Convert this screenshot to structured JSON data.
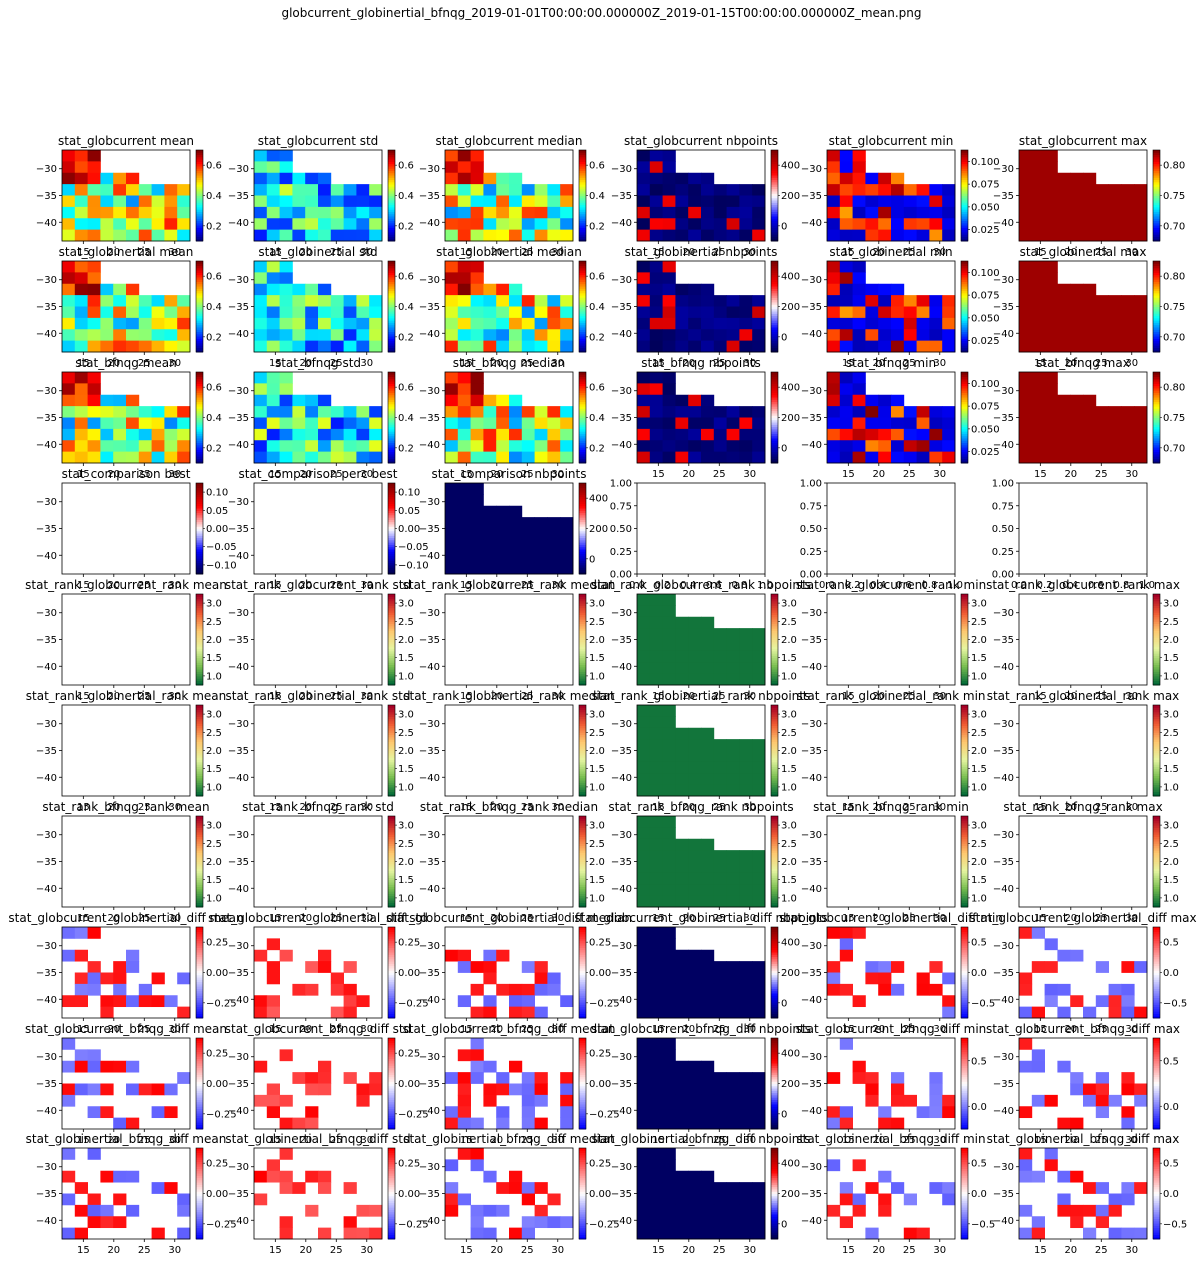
{
  "figure": {
    "title": "globcurrent_globinertial_bfnqg_2019-01-01T00:00:00.000000Z_2019-01-15T00:00:00.000000Z_mean.png"
  },
  "grid": {
    "rows": 10,
    "cols": 6
  },
  "axes": {
    "xticks": [
      15,
      20,
      25,
      30
    ],
    "yticks": [
      -30,
      -35,
      -40
    ],
    "xlim": [
      11.5,
      32.5
    ],
    "ylim": [
      -43.5,
      -26.5
    ],
    "empty_xticks": [
      "0.0",
      "0.2",
      "0.4",
      "0.6",
      "0.8",
      "1.0"
    ],
    "empty_yticks": [
      "0.00",
      "0.25",
      "0.50",
      "0.75",
      "1.00"
    ]
  },
  "colorbar_ticks": {
    "A": [
      "0.2",
      "0.4",
      "0.6"
    ],
    "B": [
      "0",
      "200",
      "400"
    ],
    "C": [
      "0.025",
      "0.050",
      "0.075",
      "0.100"
    ],
    "D": [
      "0.70",
      "0.75",
      "0.80"
    ],
    "E": [
      "−0.10",
      "−0.05",
      "0.00",
      "0.05",
      "0.10"
    ],
    "F": [
      "1.0",
      "1.5",
      "2.0",
      "2.5",
      "3.0"
    ],
    "G": [
      "−0.25",
      "0.00",
      "0.25"
    ],
    "H": [
      "−0.5",
      "0.0",
      "0.5"
    ],
    "I": [
      "0.0",
      "0.5"
    ],
    "J": [
      "−0.5",
      "0.0",
      "0.5"
    ]
  },
  "chart_data": [
    {
      "type": "heatmap",
      "title": "stat_globcurrent mean",
      "cmap": "jet",
      "cbar": "A",
      "pattern": "value",
      "seed": 1
    },
    {
      "type": "heatmap",
      "title": "stat_globcurrent std",
      "cmap": "jet",
      "cbar": "A",
      "pattern": "low",
      "seed": 2
    },
    {
      "type": "heatmap",
      "title": "stat_globcurrent median",
      "cmap": "jet",
      "cbar": "A",
      "pattern": "value",
      "seed": 3
    },
    {
      "type": "heatmap",
      "title": "stat_globcurrent nbpoints",
      "cmap": "seismic",
      "cbar": "B",
      "pattern": "count",
      "seed": 4
    },
    {
      "type": "heatmap",
      "title": "stat_globcurrent min",
      "cmap": "jet",
      "cbar": "C",
      "pattern": "min",
      "seed": 5
    },
    {
      "type": "heatmap",
      "title": "stat_globcurrent max",
      "cmap": "jet",
      "cbar": "D",
      "pattern": "max",
      "seed": 6
    },
    {
      "type": "heatmap",
      "title": "stat_globinertial mean",
      "cmap": "jet",
      "cbar": "A",
      "pattern": "value",
      "seed": 7
    },
    {
      "type": "heatmap",
      "title": "stat_globinertial std",
      "cmap": "jet",
      "cbar": "A",
      "pattern": "low",
      "seed": 8
    },
    {
      "type": "heatmap",
      "title": "stat_globinertial median",
      "cmap": "jet",
      "cbar": "A",
      "pattern": "value",
      "seed": 9
    },
    {
      "type": "heatmap",
      "title": "stat_globinertial nbpoints",
      "cmap": "seismic",
      "cbar": "B",
      "pattern": "count",
      "seed": 10
    },
    {
      "type": "heatmap",
      "title": "stat_globinertial min",
      "cmap": "jet",
      "cbar": "C",
      "pattern": "min",
      "seed": 11
    },
    {
      "type": "heatmap",
      "title": "stat_globinertial max",
      "cmap": "jet",
      "cbar": "D",
      "pattern": "max",
      "seed": 12
    },
    {
      "type": "heatmap",
      "title": "stat_bfnqg mean",
      "cmap": "jet",
      "cbar": "A",
      "pattern": "value",
      "seed": 13
    },
    {
      "type": "heatmap",
      "title": "stat_bfnqg std",
      "cmap": "jet",
      "cbar": "A",
      "pattern": "low",
      "seed": 14
    },
    {
      "type": "heatmap",
      "title": "stat_bfnqg median",
      "cmap": "jet",
      "cbar": "A",
      "pattern": "value",
      "seed": 15
    },
    {
      "type": "heatmap",
      "title": "stat_bfnqg nbpoints",
      "cmap": "seismic",
      "cbar": "B",
      "pattern": "count",
      "seed": 16
    },
    {
      "type": "heatmap",
      "title": "stat_bfnqg min",
      "cmap": "jet",
      "cbar": "C",
      "pattern": "min",
      "seed": 17
    },
    {
      "type": "heatmap",
      "title": "stat_bfnqg max",
      "cmap": "jet",
      "cbar": "D",
      "pattern": "max",
      "seed": 18
    },
    {
      "type": "heatmap",
      "title": "stat_comparison best",
      "cmap": "seismic",
      "cbar": "E",
      "pattern": "blank",
      "seed": 19
    },
    {
      "type": "heatmap",
      "title": "stat_comparison perc best",
      "cmap": "seismic",
      "cbar": "E",
      "pattern": "blank",
      "seed": 20
    },
    {
      "type": "heatmap",
      "title": "stat_comparison nbpoints",
      "cmap": "seismic",
      "cbar": "B",
      "pattern": "solid",
      "seed": 21
    },
    {
      "type": "empty",
      "title": ""
    },
    {
      "type": "empty",
      "title": ""
    },
    {
      "type": "empty",
      "title": ""
    },
    {
      "type": "heatmap",
      "title": "stat_rank_globcurrent_rank mean",
      "cmap": "rank",
      "cbar": "F",
      "pattern": "blank",
      "seed": 25
    },
    {
      "type": "heatmap",
      "title": "stat_rank_globcurrent_rank std",
      "cmap": "rank",
      "cbar": "F",
      "pattern": "blank",
      "seed": 26
    },
    {
      "type": "heatmap",
      "title": "stat_rank_globcurrent_rank median",
      "cmap": "rank",
      "cbar": "F",
      "pattern": "blank",
      "seed": 27
    },
    {
      "type": "heatmap",
      "title": "stat_rank_globcurrent_rank nbpoints",
      "cmap": "rank",
      "cbar": "F",
      "pattern": "solid",
      "seed": 28
    },
    {
      "type": "heatmap",
      "title": "stat_rank_globcurrent_rank min",
      "cmap": "rank",
      "cbar": "F",
      "pattern": "blank",
      "seed": 29
    },
    {
      "type": "heatmap",
      "title": "stat_rank_globcurrent_rank max",
      "cmap": "rank",
      "cbar": "F",
      "pattern": "blank",
      "seed": 30
    },
    {
      "type": "heatmap",
      "title": "stat_rank_globinertial_rank mean",
      "cmap": "rank",
      "cbar": "F",
      "pattern": "blank",
      "seed": 31
    },
    {
      "type": "heatmap",
      "title": "stat_rank_globinertial_rank std",
      "cmap": "rank",
      "cbar": "F",
      "pattern": "blank",
      "seed": 32
    },
    {
      "type": "heatmap",
      "title": "stat_rank_globinertial_rank median",
      "cmap": "rank",
      "cbar": "F",
      "pattern": "blank",
      "seed": 33
    },
    {
      "type": "heatmap",
      "title": "stat_rank_globinertial_rank nbpoints",
      "cmap": "rank",
      "cbar": "F",
      "pattern": "solid",
      "seed": 34
    },
    {
      "type": "heatmap",
      "title": "stat_rank_globinertial_rank min",
      "cmap": "rank",
      "cbar": "F",
      "pattern": "blank",
      "seed": 35
    },
    {
      "type": "heatmap",
      "title": "stat_rank_globinertial_rank max",
      "cmap": "rank",
      "cbar": "F",
      "pattern": "blank",
      "seed": 36
    },
    {
      "type": "heatmap",
      "title": "stat_rank_bfnqg_rank mean",
      "cmap": "rank",
      "cbar": "F",
      "pattern": "blank",
      "seed": 37
    },
    {
      "type": "heatmap",
      "title": "stat_rank_bfnqg_rank std",
      "cmap": "rank",
      "cbar": "F",
      "pattern": "blank",
      "seed": 38
    },
    {
      "type": "heatmap",
      "title": "stat_rank_bfnqg_rank median",
      "cmap": "rank",
      "cbar": "F",
      "pattern": "blank",
      "seed": 39
    },
    {
      "type": "heatmap",
      "title": "stat_rank_bfnqg_rank nbpoints",
      "cmap": "rank",
      "cbar": "F",
      "pattern": "solid",
      "seed": 40
    },
    {
      "type": "heatmap",
      "title": "stat_rank_bfnqg_rank min",
      "cmap": "rank",
      "cbar": "F",
      "pattern": "blank",
      "seed": 41
    },
    {
      "type": "heatmap",
      "title": "stat_rank_bfnqg_rank max",
      "cmap": "rank",
      "cbar": "F",
      "pattern": "blank",
      "seed": 42
    },
    {
      "type": "heatmap",
      "title": "stat_globcurrent_globinertial_diff mean",
      "cmap": "bwr",
      "cbar": "G",
      "pattern": "diff",
      "seed": 43
    },
    {
      "type": "heatmap",
      "title": "stat_globcurrent_globinertial_diff std",
      "cmap": "bwr",
      "cbar": "G",
      "pattern": "diffpos",
      "seed": 44
    },
    {
      "type": "heatmap",
      "title": "stat_globcurrent_globinertial_diff median",
      "cmap": "bwr",
      "cbar": "G",
      "pattern": "diff",
      "seed": 45
    },
    {
      "type": "heatmap",
      "title": "stat_globcurrent_globinertial_diff nbpoints",
      "cmap": "seismic",
      "cbar": "B",
      "pattern": "solid",
      "seed": 46
    },
    {
      "type": "heatmap",
      "title": "stat_globcurrent_globinertial_diff min",
      "cmap": "bwr",
      "cbar": "H",
      "pattern": "diff",
      "seed": 47
    },
    {
      "type": "heatmap",
      "title": "stat_globcurrent_globinertial_diff max",
      "cmap": "bwr",
      "cbar": "H",
      "pattern": "diff",
      "seed": 48
    },
    {
      "type": "heatmap",
      "title": "stat_globcurrent_bfnqg_diff mean",
      "cmap": "bwr",
      "cbar": "G",
      "pattern": "diff",
      "seed": 49
    },
    {
      "type": "heatmap",
      "title": "stat_globcurrent_bfnqg_diff std",
      "cmap": "bwr",
      "cbar": "G",
      "pattern": "diffpos",
      "seed": 50
    },
    {
      "type": "heatmap",
      "title": "stat_globcurrent_bfnqg_diff median",
      "cmap": "bwr",
      "cbar": "G",
      "pattern": "diff",
      "seed": 51
    },
    {
      "type": "heatmap",
      "title": "stat_globcurrent_bfnqg_diff nbpoints",
      "cmap": "seismic",
      "cbar": "B",
      "pattern": "solid",
      "seed": 52
    },
    {
      "type": "heatmap",
      "title": "stat_globcurrent_bfnqg_diff min",
      "cmap": "bwr",
      "cbar": "I",
      "pattern": "diff",
      "seed": 53
    },
    {
      "type": "heatmap",
      "title": "stat_globcurrent_bfnqg_diff max",
      "cmap": "bwr",
      "cbar": "I",
      "pattern": "diff",
      "seed": 54
    },
    {
      "type": "heatmap",
      "title": "stat_globinertial_bfnqg_diff mean",
      "cmap": "bwr",
      "cbar": "G",
      "pattern": "diff",
      "seed": 55
    },
    {
      "type": "heatmap",
      "title": "stat_globinertial_bfnqg_diff std",
      "cmap": "bwr",
      "cbar": "G",
      "pattern": "diffpos",
      "seed": 56
    },
    {
      "type": "heatmap",
      "title": "stat_globinertial_bfnqg_diff median",
      "cmap": "bwr",
      "cbar": "G",
      "pattern": "diff",
      "seed": 57
    },
    {
      "type": "heatmap",
      "title": "stat_globinertial_bfnqg_diff nbpoints",
      "cmap": "seismic",
      "cbar": "B",
      "pattern": "solid",
      "seed": 58
    },
    {
      "type": "heatmap",
      "title": "stat_globinertial_bfnqg_diff min",
      "cmap": "bwr",
      "cbar": "J",
      "pattern": "diff",
      "seed": 59
    },
    {
      "type": "heatmap",
      "title": "stat_globinertial_bfnqg_diff max",
      "cmap": "bwr",
      "cbar": "J",
      "pattern": "diff",
      "seed": 60
    }
  ]
}
